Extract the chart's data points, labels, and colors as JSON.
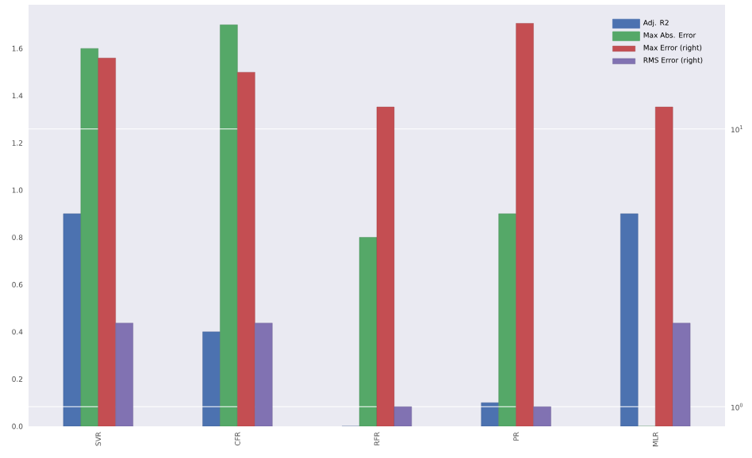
{
  "chart_data": {
    "type": "bar",
    "categories": [
      "SVR",
      "CFR",
      "RFR",
      "PR",
      "MLR"
    ],
    "series": [
      {
        "name": "Adj. R2",
        "color": "#4c72b0",
        "values": [
          0.9,
          0.4,
          0.0,
          0.1,
          0.9
        ]
      },
      {
        "name": "Max Abs. Error",
        "color": "#55a868",
        "values": [
          1.6,
          1.7,
          0.8,
          0.9,
          0.0
        ]
      },
      {
        "name": "Max Error (right)",
        "color": "#c44e52",
        "axis": "y2",
        "values": [
          18,
          16,
          12,
          24,
          12
        ]
      },
      {
        "name": "RMS Error (right)",
        "color": "#8172b2",
        "axis": "y2",
        "values": [
          2.0,
          2.0,
          1.0,
          1.0,
          2.0
        ]
      }
    ],
    "ylim": [
      0,
      1.785
    ],
    "yticks": [
      {
        "value": 0,
        "label": "0.0"
      },
      0.2,
      0.4,
      0.6,
      0.8,
      {
        "value": 1,
        "label": "1.0"
      },
      1.2,
      1.4,
      1.6
    ],
    "log": "y2",
    "y2lim": [
      0.85,
      28
    ],
    "y2ticks": [
      {
        "value": 1,
        "label": "10$^{0}$"
      },
      {
        "value": 10,
        "label": "10$^{1}$"
      }
    ],
    "grid": "y2",
    "legend": "top right"
  }
}
